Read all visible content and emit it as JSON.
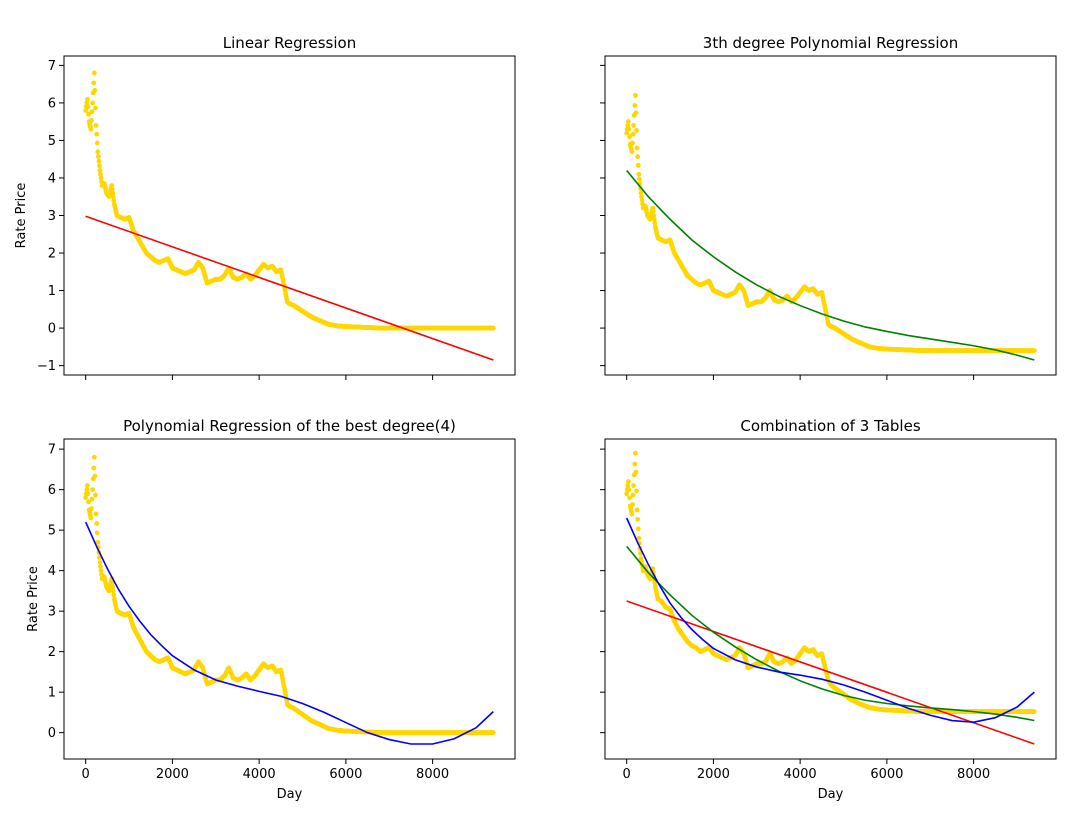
{
  "chart_data": [
    {
      "type": "scatter",
      "title": "Linear Regression",
      "xlabel": "",
      "ylabel": "Rate Price",
      "xlim": [
        -500,
        9900
      ],
      "ylim": [
        -1.25,
        7.25
      ],
      "xticks": [
        0,
        2000,
        4000,
        6000,
        8000
      ],
      "xtick_labels_visible": false,
      "yticks": [
        -1,
        0,
        1,
        2,
        3,
        4,
        5,
        6,
        7
      ],
      "ytick_labels": [
        "−1",
        "0",
        "1",
        "2",
        "3",
        "4",
        "5",
        "6",
        "7"
      ],
      "scatter_color": "#ffd700",
      "scatter_x": [
        0,
        40,
        80,
        120,
        160,
        200,
        240,
        280,
        330,
        380,
        430,
        480,
        540,
        600,
        660,
        720,
        800,
        900,
        1000,
        1100,
        1200,
        1300,
        1400,
        1500,
        1600,
        1700,
        1800,
        1900,
        2000,
        2100,
        2200,
        2300,
        2400,
        2500,
        2600,
        2700,
        2800,
        2900,
        3000,
        3100,
        3200,
        3300,
        3400,
        3500,
        3600,
        3700,
        3800,
        3900,
        4000,
        4100,
        4200,
        4300,
        4400,
        4500,
        4600,
        4650,
        4700,
        4800,
        5000,
        5200,
        5400,
        5600,
        5800,
        6000,
        6200,
        6400,
        6600,
        6800,
        7000,
        7200,
        7400,
        7600,
        7800,
        8000,
        8200,
        8400,
        8600,
        8800,
        9000,
        9200,
        9400
      ],
      "scatter_y": [
        5.8,
        6.1,
        5.5,
        5.3,
        6.0,
        6.8,
        5.4,
        4.7,
        4.2,
        3.8,
        3.85,
        3.6,
        3.5,
        3.8,
        3.3,
        3.0,
        2.95,
        2.9,
        2.95,
        2.6,
        2.4,
        2.2,
        2.0,
        1.9,
        1.8,
        1.75,
        1.8,
        1.85,
        1.6,
        1.55,
        1.5,
        1.45,
        1.5,
        1.55,
        1.75,
        1.6,
        1.2,
        1.25,
        1.3,
        1.3,
        1.4,
        1.6,
        1.35,
        1.3,
        1.35,
        1.45,
        1.3,
        1.4,
        1.55,
        1.7,
        1.6,
        1.65,
        1.5,
        1.55,
        1.0,
        0.7,
        0.65,
        0.6,
        0.45,
        0.3,
        0.2,
        0.1,
        0.06,
        0.04,
        0.03,
        0.02,
        0.01,
        0.0,
        0.0,
        0.0,
        0.0,
        0.0,
        0.0,
        0.0,
        0.0,
        0.0,
        0.0,
        0.0,
        0.0,
        0.0,
        0.0
      ],
      "series": [
        {
          "color": "#ff0000",
          "x": [
            0,
            9400
          ],
          "y": [
            2.98,
            -0.85
          ]
        }
      ]
    },
    {
      "type": "scatter",
      "title": "3th degree Polynomial Regression",
      "xlabel": "",
      "ylabel": "",
      "xlim": [
        -500,
        9900
      ],
      "ylim": [
        -1.25,
        7.25
      ],
      "xticks": [
        0,
        2000,
        4000,
        6000,
        8000
      ],
      "xtick_labels_visible": false,
      "yticks": [
        -1,
        0,
        1,
        2,
        3,
        4,
        5,
        6,
        7
      ],
      "ytick_labels_visible": false,
      "scatter_color": "#ffd700",
      "scatter_x": [
        0,
        40,
        80,
        120,
        160,
        200,
        240,
        280,
        330,
        380,
        430,
        480,
        540,
        600,
        660,
        720,
        800,
        900,
        1000,
        1100,
        1200,
        1300,
        1400,
        1500,
        1600,
        1700,
        1800,
        1900,
        2000,
        2100,
        2200,
        2300,
        2400,
        2500,
        2600,
        2700,
        2800,
        2900,
        3000,
        3100,
        3200,
        3300,
        3400,
        3500,
        3600,
        3700,
        3800,
        3900,
        4000,
        4100,
        4200,
        4300,
        4400,
        4500,
        4600,
        4650,
        4700,
        4800,
        5000,
        5200,
        5400,
        5600,
        5800,
        6000,
        6200,
        6400,
        6600,
        6800,
        7000,
        7200,
        7400,
        7600,
        7800,
        8000,
        8200,
        8400,
        8600,
        8800,
        9000,
        9200,
        9400
      ],
      "scatter_y": [
        5.2,
        5.5,
        4.9,
        4.7,
        5.4,
        6.2,
        4.8,
        4.1,
        3.6,
        3.2,
        3.25,
        3.0,
        2.9,
        3.2,
        2.7,
        2.4,
        2.35,
        2.3,
        2.35,
        2.0,
        1.8,
        1.6,
        1.4,
        1.3,
        1.2,
        1.15,
        1.2,
        1.25,
        1.0,
        0.95,
        0.9,
        0.85,
        0.9,
        0.95,
        1.15,
        1.0,
        0.6,
        0.65,
        0.7,
        0.7,
        0.8,
        1.0,
        0.75,
        0.7,
        0.75,
        0.85,
        0.7,
        0.8,
        0.95,
        1.1,
        1.0,
        1.05,
        0.9,
        0.95,
        0.4,
        0.1,
        0.05,
        0.0,
        -0.15,
        -0.3,
        -0.4,
        -0.5,
        -0.54,
        -0.56,
        -0.57,
        -0.58,
        -0.59,
        -0.6,
        -0.6,
        -0.6,
        -0.6,
        -0.6,
        -0.6,
        -0.6,
        -0.6,
        -0.6,
        -0.6,
        -0.6,
        -0.6,
        -0.6,
        -0.6
      ],
      "series": [
        {
          "color": "#008000",
          "x": [
            0,
            500,
            1000,
            1500,
            2000,
            2500,
            3000,
            3500,
            4000,
            4500,
            5000,
            5500,
            6000,
            6500,
            7000,
            7500,
            8000,
            8500,
            9000,
            9400
          ],
          "y": [
            4.2,
            3.5,
            2.9,
            2.35,
            1.9,
            1.5,
            1.15,
            0.85,
            0.6,
            0.38,
            0.19,
            0.03,
            -0.09,
            -0.2,
            -0.29,
            -0.38,
            -0.47,
            -0.58,
            -0.72,
            -0.85
          ]
        }
      ]
    },
    {
      "type": "scatter",
      "title": "Polynomial Regression of the best degree(4)",
      "xlabel": "Day",
      "ylabel": "Rate Price",
      "xlim": [
        -500,
        9900
      ],
      "ylim": [
        -0.65,
        7.25
      ],
      "xticks": [
        0,
        2000,
        4000,
        6000,
        8000
      ],
      "xtick_labels": [
        "0",
        "2000",
        "4000",
        "6000",
        "8000"
      ],
      "yticks": [
        0,
        1,
        2,
        3,
        4,
        5,
        6,
        7
      ],
      "ytick_labels": [
        "0",
        "1",
        "2",
        "3",
        "4",
        "5",
        "6",
        "7"
      ],
      "scatter_color": "#ffd700",
      "scatter_x": [
        0,
        40,
        80,
        120,
        160,
        200,
        240,
        280,
        330,
        380,
        430,
        480,
        540,
        600,
        660,
        720,
        800,
        900,
        1000,
        1100,
        1200,
        1300,
        1400,
        1500,
        1600,
        1700,
        1800,
        1900,
        2000,
        2100,
        2200,
        2300,
        2400,
        2500,
        2600,
        2700,
        2800,
        2900,
        3000,
        3100,
        3200,
        3300,
        3400,
        3500,
        3600,
        3700,
        3800,
        3900,
        4000,
        4100,
        4200,
        4300,
        4400,
        4500,
        4600,
        4650,
        4700,
        4800,
        5000,
        5200,
        5400,
        5600,
        5800,
        6000,
        6200,
        6400,
        6600,
        6800,
        7000,
        7200,
        7400,
        7600,
        7800,
        8000,
        8200,
        8400,
        8600,
        8800,
        9000,
        9200,
        9400
      ],
      "scatter_y": [
        5.8,
        6.1,
        5.5,
        5.3,
        6.0,
        6.8,
        5.4,
        4.7,
        4.2,
        3.8,
        3.85,
        3.6,
        3.5,
        3.8,
        3.3,
        3.0,
        2.95,
        2.9,
        2.95,
        2.6,
        2.4,
        2.2,
        2.0,
        1.9,
        1.8,
        1.75,
        1.8,
        1.85,
        1.6,
        1.55,
        1.5,
        1.45,
        1.5,
        1.55,
        1.75,
        1.6,
        1.2,
        1.25,
        1.3,
        1.3,
        1.4,
        1.6,
        1.35,
        1.3,
        1.35,
        1.45,
        1.3,
        1.4,
        1.55,
        1.7,
        1.6,
        1.65,
        1.5,
        1.55,
        1.0,
        0.7,
        0.65,
        0.6,
        0.45,
        0.3,
        0.2,
        0.1,
        0.06,
        0.04,
        0.03,
        0.02,
        0.01,
        0.0,
        0.0,
        0.0,
        0.0,
        0.0,
        0.0,
        0.0,
        0.0,
        0.0,
        0.0,
        0.0,
        0.0,
        0.0,
        0.0
      ],
      "series": [
        {
          "color": "#0000ff",
          "x": [
            0,
            250,
            500,
            750,
            1000,
            1250,
            1500,
            1750,
            2000,
            2500,
            3000,
            3500,
            4000,
            4500,
            5000,
            5500,
            6000,
            6500,
            7000,
            7500,
            8000,
            8500,
            9000,
            9400
          ],
          "y": [
            5.2,
            4.6,
            4.05,
            3.55,
            3.12,
            2.75,
            2.42,
            2.15,
            1.9,
            1.55,
            1.3,
            1.15,
            1.02,
            0.9,
            0.72,
            0.5,
            0.25,
            0.0,
            -0.17,
            -0.28,
            -0.28,
            -0.15,
            0.12,
            0.52
          ]
        }
      ]
    },
    {
      "type": "scatter",
      "title": "Combination of 3 Tables",
      "xlabel": "Day",
      "ylabel": "",
      "xlim": [
        -500,
        9900
      ],
      "ylim": [
        -0.65,
        7.25
      ],
      "xticks": [
        0,
        2000,
        4000,
        6000,
        8000
      ],
      "xtick_labels": [
        "0",
        "2000",
        "4000",
        "6000",
        "8000"
      ],
      "yticks": [
        0,
        1,
        2,
        3,
        4,
        5,
        6,
        7
      ],
      "ytick_labels_visible": false,
      "scatter_color": "#ffd700",
      "scatter_x": [
        0,
        40,
        80,
        120,
        160,
        200,
        240,
        280,
        330,
        380,
        430,
        480,
        540,
        600,
        660,
        720,
        800,
        900,
        1000,
        1100,
        1200,
        1300,
        1400,
        1500,
        1600,
        1700,
        1800,
        1900,
        2000,
        2100,
        2200,
        2300,
        2400,
        2500,
        2600,
        2700,
        2800,
        2900,
        3000,
        3100,
        3200,
        3300,
        3400,
        3500,
        3600,
        3700,
        3800,
        3900,
        4000,
        4100,
        4200,
        4300,
        4400,
        4500,
        4600,
        4650,
        4700,
        4800,
        5000,
        5200,
        5400,
        5600,
        5800,
        6000,
        6200,
        6400,
        6600,
        6800,
        7000,
        7200,
        7400,
        7600,
        7800,
        8000,
        8200,
        8400,
        8600,
        8800,
        9000,
        9200,
        9400
      ],
      "scatter_y": [
        5.9,
        6.2,
        5.6,
        5.4,
        6.1,
        6.9,
        5.5,
        4.8,
        4.3,
        4.0,
        4.1,
        3.9,
        3.8,
        4.05,
        3.6,
        3.3,
        3.25,
        3.1,
        3.05,
        2.75,
        2.55,
        2.4,
        2.25,
        2.15,
        2.1,
        2.0,
        2.05,
        2.1,
        1.95,
        1.9,
        1.85,
        1.8,
        1.85,
        1.9,
        2.1,
        1.95,
        1.6,
        1.65,
        1.7,
        1.7,
        1.75,
        1.95,
        1.75,
        1.7,
        1.75,
        1.85,
        1.7,
        1.8,
        1.95,
        2.1,
        2.0,
        2.05,
        1.9,
        1.95,
        1.5,
        1.3,
        1.2,
        1.1,
        0.95,
        0.8,
        0.7,
        0.62,
        0.58,
        0.56,
        0.55,
        0.54,
        0.53,
        0.52,
        0.52,
        0.52,
        0.52,
        0.52,
        0.52,
        0.52,
        0.52,
        0.52,
        0.52,
        0.52,
        0.52,
        0.52,
        0.52
      ],
      "series": [
        {
          "color": "#ff0000",
          "x": [
            0,
            9400
          ],
          "y": [
            3.25,
            -0.28
          ]
        },
        {
          "color": "#008000",
          "x": [
            0,
            500,
            1000,
            1500,
            2000,
            2500,
            3000,
            3500,
            4000,
            4500,
            5000,
            5500,
            6000,
            6500,
            7000,
            7500,
            8000,
            8500,
            9000,
            9400
          ],
          "y": [
            4.6,
            3.95,
            3.4,
            2.9,
            2.48,
            2.12,
            1.8,
            1.52,
            1.28,
            1.08,
            0.92,
            0.8,
            0.72,
            0.66,
            0.61,
            0.57,
            0.52,
            0.46,
            0.38,
            0.3
          ]
        },
        {
          "color": "#0000ff",
          "x": [
            0,
            250,
            500,
            750,
            1000,
            1250,
            1500,
            1750,
            2000,
            2500,
            3000,
            3500,
            4000,
            4500,
            5000,
            5500,
            6000,
            6500,
            7000,
            7500,
            8000,
            8500,
            9000,
            9400
          ],
          "y": [
            5.3,
            4.7,
            4.15,
            3.65,
            3.2,
            2.85,
            2.55,
            2.3,
            2.08,
            1.8,
            1.62,
            1.5,
            1.42,
            1.32,
            1.18,
            1.0,
            0.8,
            0.6,
            0.43,
            0.3,
            0.26,
            0.37,
            0.63,
            1.0
          ]
        }
      ]
    }
  ]
}
